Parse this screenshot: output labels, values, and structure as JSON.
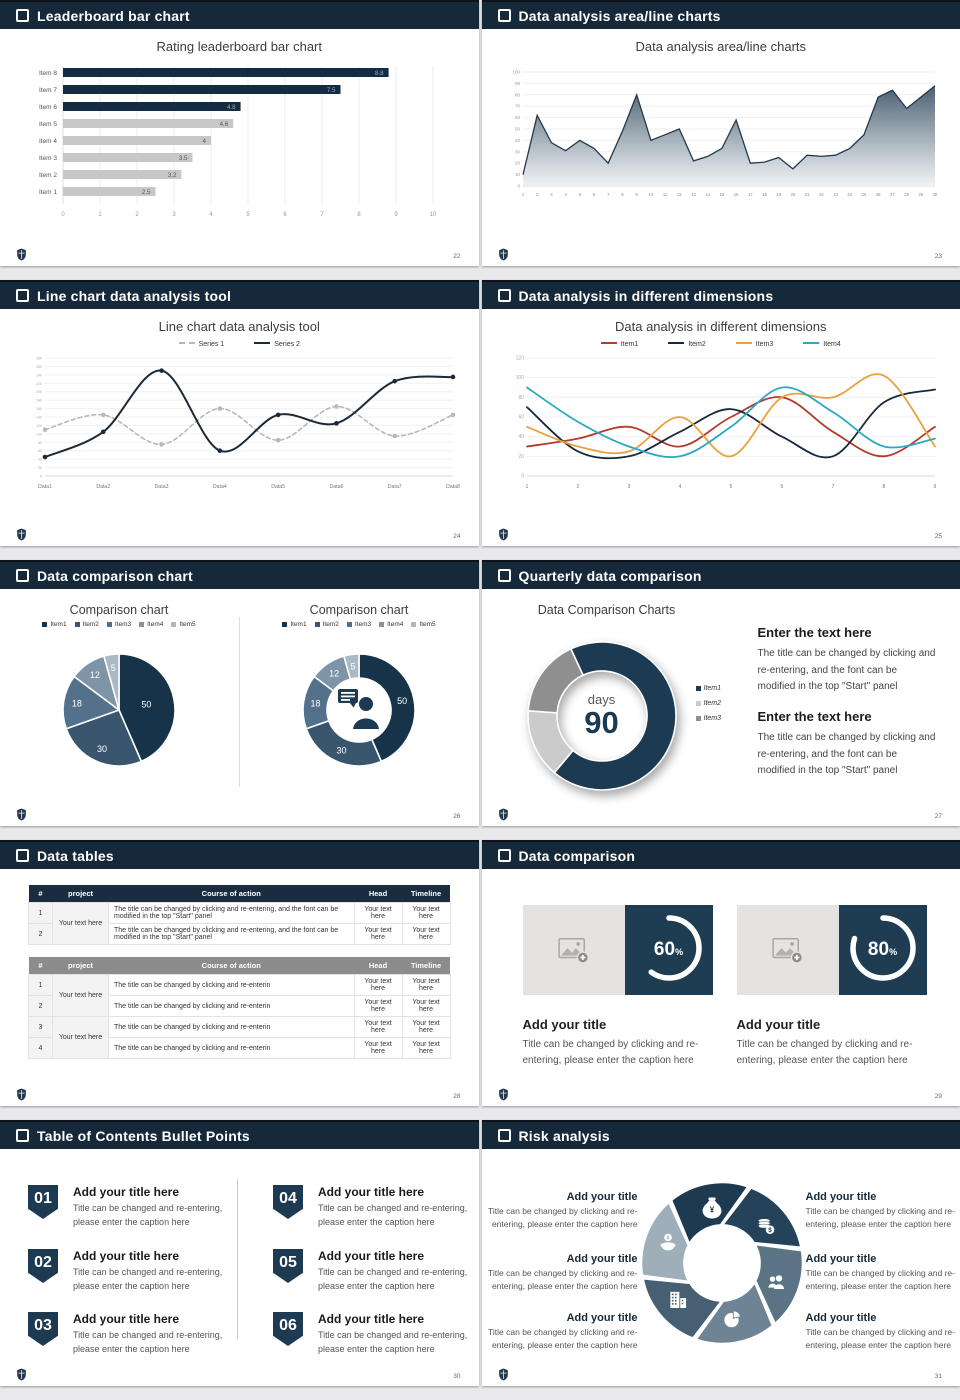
{
  "deck": {
    "accent": "#16293a",
    "header_icon": "checkbox-icon",
    "footer_logo_icon": "university-crest-icon",
    "background": "#e9e9eb"
  },
  "slides": [
    {
      "header": "Leaderboard bar chart",
      "page": "22",
      "title": "Rating leaderboard bar chart",
      "chart_data": {
        "type": "bar-h",
        "title": "Rating leaderboard bar chart",
        "categories": [
          "Item 1",
          "Item 2",
          "Item 3",
          "Item 4",
          "Item 5",
          "Item 6",
          "Item 7",
          "Item 8"
        ],
        "values": [
          2.5,
          3.2,
          3.5,
          4,
          4.6,
          4.8,
          7.5,
          8.8
        ],
        "colors": [
          "#c7c7c7",
          "#c7c7c7",
          "#c7c7c7",
          "#c7c7c7",
          "#c7c7c7",
          "#132c42",
          "#132c42",
          "#132c42"
        ],
        "xlim": [
          0,
          10
        ],
        "x_ticks": [
          "0",
          "1",
          "2",
          "3",
          "4",
          "5",
          "6",
          "7",
          "8",
          "9",
          "10"
        ],
        "grid": true,
        "legend_position": "none"
      }
    },
    {
      "header": "Data analysis area/line charts",
      "page": "23",
      "title": "Data analysis area/line charts",
      "chart_data": {
        "type": "area",
        "title": "Data analysis area/line charts",
        "x_labels": [
          "1",
          "2",
          "3",
          "4",
          "5",
          "6",
          "7",
          "8",
          "9",
          "10",
          "11",
          "12",
          "13",
          "14",
          "15",
          "16",
          "17",
          "18",
          "19",
          "20",
          "21",
          "22",
          "23",
          "24",
          "25",
          "26",
          "27",
          "28",
          "29",
          "30"
        ],
        "values": [
          10,
          62,
          38,
          31,
          40,
          33,
          20,
          48,
          80,
          40,
          45,
          50,
          22,
          26,
          33,
          58,
          20,
          21,
          25,
          15,
          27,
          26,
          27,
          33,
          45,
          78,
          84,
          68,
          78,
          88
        ],
        "ylim": [
          0,
          100
        ],
        "y_step": 10,
        "line_color": "#24394c",
        "fill_gradient": [
          "#40566a",
          "#eef1f4"
        ],
        "grid": true
      }
    },
    {
      "header": "Line chart data analysis tool",
      "page": "24",
      "title": "Line chart data analysis tool",
      "chart_data": {
        "type": "line",
        "title": "Line chart data analysis tool",
        "categories": [
          "Data1",
          "Data2",
          "Data3",
          "Data4",
          "Data5",
          "Data6",
          "Data7",
          "Data8"
        ],
        "ylim": [
          0,
          280
        ],
        "y_step": 20,
        "legend_position": "top",
        "series": [
          {
            "name": "Series 1",
            "color": "#b9b9b9",
            "dash": "4 3",
            "width": 1.6,
            "marker": true,
            "values": [
              110,
              145,
              75,
              160,
              85,
              165,
              95,
              145
            ]
          },
          {
            "name": "Series 2",
            "color": "#1b2a38",
            "dash": "",
            "width": 2,
            "marker": true,
            "values": [
              45,
              105,
              250,
              60,
              145,
              125,
              225,
              235
            ]
          }
        ]
      }
    },
    {
      "header": "Data analysis in different dimensions",
      "page": "25",
      "title": "Data analysis in different dimensions",
      "chart_data": {
        "type": "line",
        "title": "Data analysis in different dimensions",
        "categories": [
          "1",
          "2",
          "3",
          "4",
          "5",
          "6",
          "7",
          "8",
          "9"
        ],
        "ylim": [
          0,
          120
        ],
        "y_step": 20,
        "legend_position": "top",
        "series": [
          {
            "name": "Item1",
            "color": "#b23b2e",
            "dash": "",
            "width": 1.8,
            "marker": false,
            "values": [
              30,
              38,
              50,
              30,
              60,
              80,
              45,
              20,
              50
            ]
          },
          {
            "name": "Item2",
            "color": "#17293a",
            "dash": "",
            "width": 1.8,
            "marker": false,
            "values": [
              70,
              25,
              20,
              45,
              68,
              40,
              20,
              75,
              88
            ]
          },
          {
            "name": "Item3",
            "color": "#e9a23b",
            "dash": "",
            "width": 1.8,
            "marker": false,
            "values": [
              50,
              30,
              25,
              60,
              20,
              80,
              80,
              102,
              30
            ]
          },
          {
            "name": "Item4",
            "color": "#2aa7c4",
            "dash": "",
            "width": 1.8,
            "marker": false,
            "values": [
              90,
              55,
              30,
              20,
              50,
              90,
              65,
              30,
              38
            ]
          }
        ]
      }
    },
    {
      "header": "Data comparison chart",
      "page": "26",
      "chart_data": [
        {
          "type": "pie",
          "title": "Comparison chart",
          "labels": [
            "Item1",
            "Item2",
            "Item3",
            "Item4",
            "Item5"
          ],
          "values": [
            50,
            30,
            18,
            12,
            5
          ],
          "colors": [
            "#16334a",
            "#3a566e",
            "#53718a",
            "#7e95a7",
            "#a9b9c6"
          ],
          "show_labels": true,
          "legend_position": "top"
        },
        {
          "type": "donut",
          "title": "Comparison chart",
          "labels": [
            "Item1",
            "Item2",
            "Item3",
            "Item4",
            "Item5"
          ],
          "values": [
            50,
            30,
            18,
            12,
            5
          ],
          "colors": [
            "#16334a",
            "#3a566e",
            "#53718a",
            "#7e95a7",
            "#a9b9c6"
          ],
          "show_labels": true,
          "center_icon": "businessman-icon",
          "legend_position": "top"
        }
      ]
    },
    {
      "header": "Quarterly data comparison",
      "page": "27",
      "chart_data": {
        "type": "donut",
        "title": "Data Comparison Charts",
        "labels": [
          "Item1",
          "Item2",
          "Item3"
        ],
        "values": [
          68,
          15,
          17
        ],
        "colors": [
          "#1c3a52",
          "#cbcbcb",
          "#8f8f8f"
        ],
        "start_deg": 220,
        "draw_order": [
          1,
          2,
          0
        ],
        "size": 176,
        "show_labels": false,
        "center": {
          "label": "days",
          "value": "90"
        }
      },
      "text_blocks": [
        {
          "heading": "Enter the text here",
          "body": "The title can be changed by clicking and re-entering, and the font can be modified in the top \"Start\" panel"
        },
        {
          "heading": "Enter the text here",
          "body": "The title can be changed by clicking and re-entering, and the font can be modified in the top \"Start\" panel"
        }
      ]
    },
    {
      "header": "Data tables",
      "page": "28",
      "tables": [
        {
          "columns": [
            "#",
            "project",
            "Course of action",
            "Head",
            "Timeline"
          ],
          "groups": [
            {
              "project": "Your text here",
              "rows": [
                {
                  "num": "1",
                  "course": "The title can be changed by clicking and re-entering, and the font can be modified in the top \"Start\" panel",
                  "head": "Your text here",
                  "timeline": "Your text here"
                },
                {
                  "num": "2",
                  "course": "The title can be changed by clicking and re-entering, and the font can be modified in the top \"Start\" panel",
                  "head": "Your text here",
                  "timeline": "Your text here"
                }
              ]
            }
          ]
        },
        {
          "columns": [
            "#",
            "project",
            "Course of action",
            "Head",
            "Timeline"
          ],
          "groups": [
            {
              "project": "Your text here",
              "rows": [
                {
                  "num": "1",
                  "course": "The title can be changed by clicking and re-enterin",
                  "head": "Your text here",
                  "timeline": "Your text here"
                },
                {
                  "num": "2",
                  "course": "The title can be changed by clicking and re-enterin",
                  "head": "Your text here",
                  "timeline": "Your text here"
                }
              ]
            },
            {
              "project": "Your text here",
              "rows": [
                {
                  "num": "3",
                  "course": "The title can be changed by clicking and re-enterin",
                  "head": "Your text here",
                  "timeline": "Your text here"
                },
                {
                  "num": "4",
                  "course": "The title can be changed by clicking and re-enterin",
                  "head": "Your text here",
                  "timeline": "Your text here"
                }
              ]
            }
          ]
        }
      ]
    },
    {
      "header": "Data comparison",
      "page": "29",
      "placeholder_icon": "image-placeholder-icon",
      "cards": [
        {
          "percent": "60",
          "symbol": "%",
          "title": "Add your title",
          "caption": "Title can be changed by clicking and re-entering, please enter the caption here"
        },
        {
          "percent": "80",
          "symbol": "%",
          "title": "Add your title",
          "caption": "Title can be changed by clicking and re-entering, please enter the caption here"
        }
      ]
    },
    {
      "header": "Table of Contents Bullet Points",
      "page": "30",
      "items": [
        {
          "num": "01",
          "title": "Add your title here",
          "caption": "Title can be changed and re-entering, please enter the caption here"
        },
        {
          "num": "02",
          "title": "Add your title here",
          "caption": "Title can be changed and re-entering, please enter the caption here"
        },
        {
          "num": "03",
          "title": "Add your title here",
          "caption": "Title can be changed and re-entering, please enter the caption here"
        },
        {
          "num": "04",
          "title": "Add your title here",
          "caption": "Title can be changed and re-entering, please enter the caption here"
        },
        {
          "num": "05",
          "title": "Add your title here",
          "caption": "Title can be changed and re-entering, please enter the caption here"
        },
        {
          "num": "06",
          "title": "Add your title here",
          "caption": "Title can be changed and re-entering, please enter the caption here"
        }
      ]
    },
    {
      "header": "Risk analysis",
      "page": "31",
      "blocks": [
        {
          "title": "Add your title",
          "caption": "Title can be changed by clicking and re-entering, please enter the caption here"
        },
        {
          "title": "Add your title",
          "caption": "Title can be changed by clicking and re-entering, please enter the caption here"
        },
        {
          "title": "Add your title",
          "caption": "Title can be changed by clicking and re-entering, please enter the caption here"
        },
        {
          "title": "Add your title",
          "caption": "Title can be changed by clicking and re-entering, please enter the caption here"
        },
        {
          "title": "Add your title",
          "caption": "Title can be changed by clicking and re-entering, please enter the caption here"
        },
        {
          "title": "Add your title",
          "caption": "Title can be changed by clicking and re-entering, please enter the caption here"
        }
      ],
      "wheel": {
        "type": "pinwheel",
        "blades": [
          {
            "icon": "money-bag-icon",
            "color": "#1d3a50",
            "angle": -100
          },
          {
            "icon": "coins-icon",
            "color": "#24435a",
            "angle": -40
          },
          {
            "icon": "people-icon",
            "color": "#5a7486",
            "angle": 20
          },
          {
            "icon": "pie-chart-icon",
            "color": "#6e8494",
            "angle": 80
          },
          {
            "icon": "building-icon",
            "color": "#475f72",
            "angle": 140
          },
          {
            "icon": "hand-coin-icon",
            "color": "#9fafba",
            "angle": 200
          }
        ]
      }
    }
  ]
}
